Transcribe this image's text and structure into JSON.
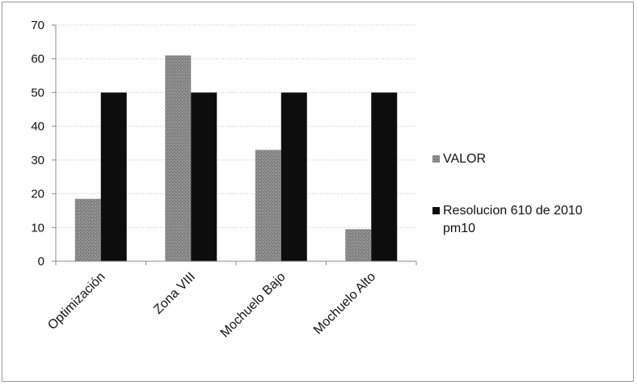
{
  "chart_data": {
    "type": "bar",
    "title": "",
    "xlabel": "",
    "ylabel": "",
    "categories": [
      "Optimización",
      "Zona VIII",
      "Mochuelo Bajo",
      "Mochuelo Alto"
    ],
    "series": [
      {
        "name": "VALOR",
        "values": [
          18.5,
          61,
          33,
          9.5
        ],
        "color": "#8a8a8a"
      },
      {
        "name": "Resolucion 610 de 2010 pm10",
        "values": [
          50,
          50,
          50,
          50
        ],
        "color": "#0d0d0d"
      }
    ],
    "legend_lines": [
      [
        "VALOR"
      ],
      [
        "Resolucion 610 de 2010",
        "pm10"
      ]
    ],
    "ylim": [
      0,
      70
    ],
    "yticks": [
      "0",
      "10",
      "20",
      "30",
      "40",
      "50",
      "60",
      "70"
    ],
    "grid": true,
    "legend_position": "right"
  }
}
